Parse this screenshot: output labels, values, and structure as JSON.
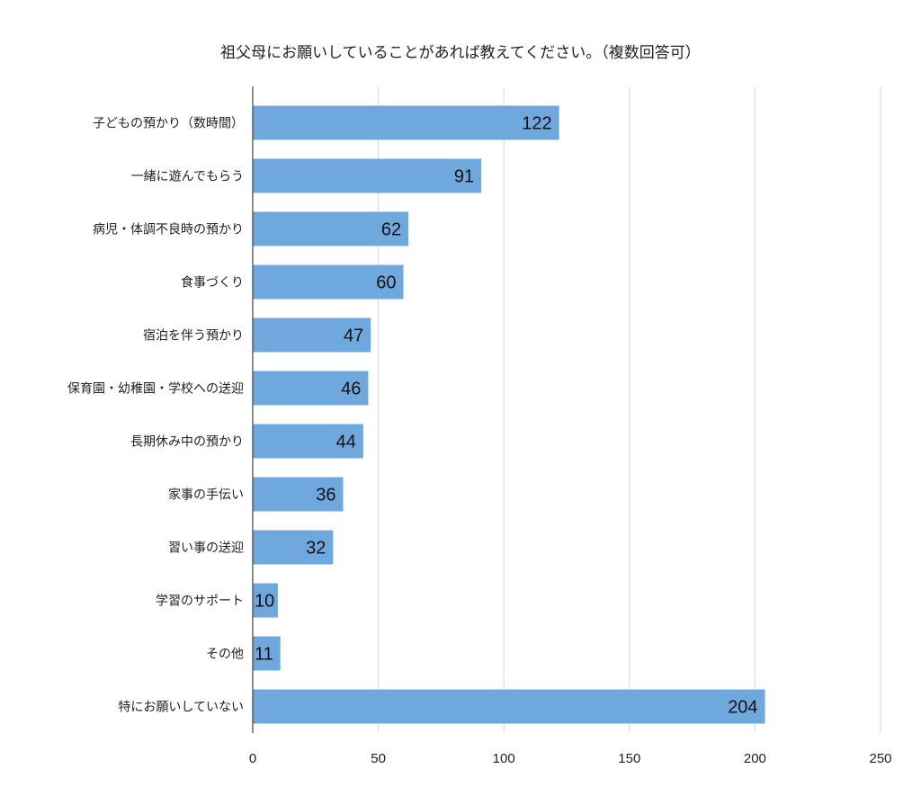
{
  "chart_data": {
    "type": "bar",
    "orientation": "horizontal",
    "title": "祖父母にお願いしていることがあれば教えてください。（複数回答可）",
    "xlabel": "",
    "ylabel": "",
    "categories": [
      "子どもの預かり（数時間）",
      "一緒に遊んでもらう",
      "病児・体調不良時の預かり",
      "食事づくり",
      "宿泊を伴う預かり",
      "保育園・幼稚園・学校への送迎",
      "長期休み中の預かり",
      "家事の手伝い",
      "習い事の送迎",
      "学習のサポート",
      "その他",
      "特にお願いしていない"
    ],
    "values": [
      122,
      91,
      62,
      60,
      47,
      46,
      44,
      36,
      32,
      10,
      11,
      204
    ],
    "xlim": [
      0,
      250
    ],
    "xticks": [
      0,
      50,
      100,
      150,
      200,
      250
    ],
    "grid": "vertical",
    "legend": "none",
    "bar_color": "#6fa8dc",
    "grid_color": "#d9d9d9",
    "axis_color": "#444444"
  }
}
